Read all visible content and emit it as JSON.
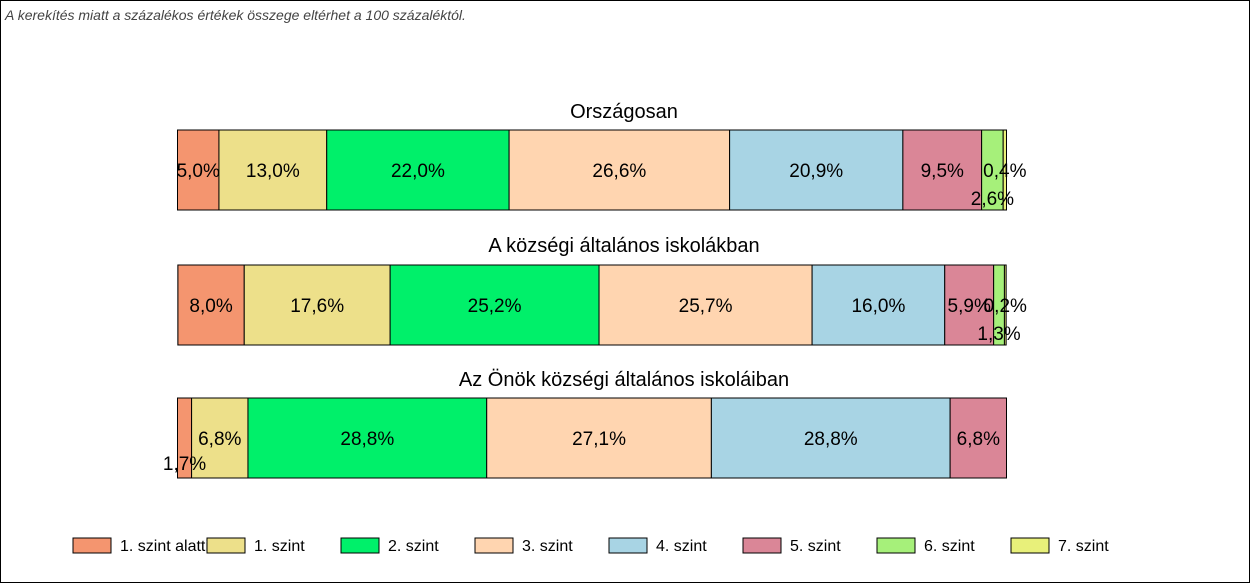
{
  "note": "A kerekítés miatt a  százalékos értékek összege eltérhet a 100 százaléktól.",
  "chart_data": {
    "type": "bar",
    "orientation": "horizontal",
    "stacked": true,
    "unit": "%",
    "categories": [
      "Országosan",
      "A községi általános iskolákban",
      "Az Önök községi általános iskoláiban"
    ],
    "series": [
      {
        "name": "1. szint alatti",
        "color": "#F4956F",
        "values": [
          5.0,
          8.0,
          1.7
        ],
        "labels": [
          "5,0%",
          "8,0%",
          "1,7%"
        ]
      },
      {
        "name": "1. szint",
        "color": "#EDE08A",
        "values": [
          13.0,
          17.6,
          6.8
        ],
        "labels": [
          "13,0%",
          "17,6%",
          "6,8%"
        ]
      },
      {
        "name": "2. szint",
        "color": "#00F06A",
        "values": [
          22.0,
          25.2,
          28.8
        ],
        "labels": [
          "22,0%",
          "25,2%",
          "28,8%"
        ]
      },
      {
        "name": "3. szint",
        "color": "#FFD5B0",
        "values": [
          26.6,
          25.7,
          27.1
        ],
        "labels": [
          "26,6%",
          "25,7%",
          "27,1%"
        ]
      },
      {
        "name": "4. szint",
        "color": "#A8D4E4",
        "values": [
          20.9,
          16.0,
          28.8
        ],
        "labels": [
          "20,9%",
          "16,0%",
          "28,8%"
        ]
      },
      {
        "name": "5. szint",
        "color": "#DA8697",
        "values": [
          9.5,
          5.9,
          6.8
        ],
        "labels": [
          "9,5%",
          "5,9%",
          "6,8%"
        ]
      },
      {
        "name": "6. szint",
        "color": "#A6F07A",
        "values": [
          2.6,
          1.3,
          0
        ],
        "labels": [
          "2,6%",
          "1,3%",
          ""
        ]
      },
      {
        "name": "7. szint",
        "color": "#E8F07A",
        "values": [
          0.4,
          0.2,
          0
        ],
        "labels": [
          "0,4%",
          "0,2%",
          ""
        ]
      }
    ],
    "legend_position": "bottom",
    "grid": false
  }
}
